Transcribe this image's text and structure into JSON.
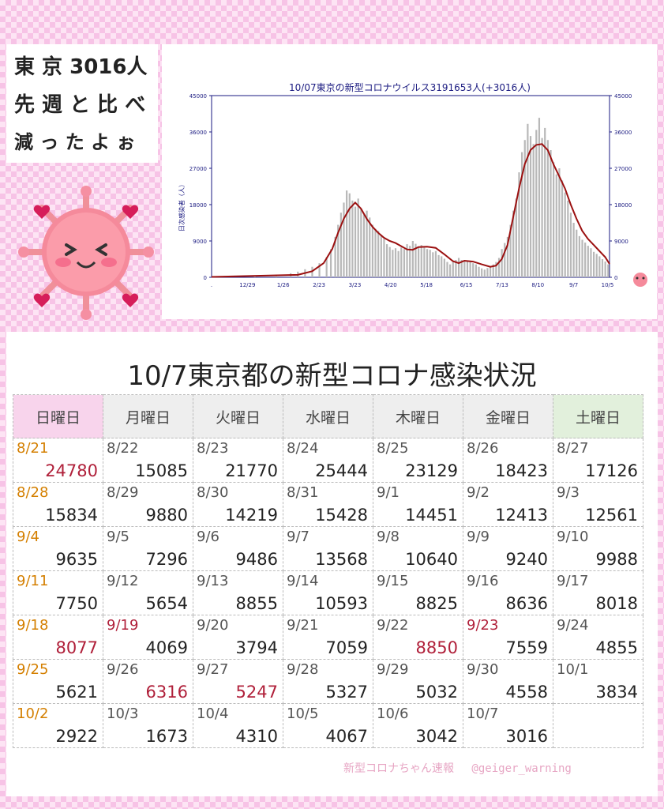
{
  "speech": {
    "line1": "東 京 3016人",
    "line2": "先 週 と 比 べ",
    "line3": "減 っ た よ ぉ"
  },
  "mascot": {
    "face": ">  <",
    "icon": "virus-mascot-icon"
  },
  "chart_data": {
    "type": "bar+line",
    "title": "10/07東京の新型コロナウイルス3191653人(+3016人)",
    "ylabel": "日次感染者（人）",
    "ylim": [
      0,
      45000
    ],
    "yticks": [
      0,
      9000,
      18000,
      27000,
      36000,
      45000
    ],
    "xticks": [
      ".",
      "12/29",
      "1/26",
      "2/23",
      "3/23",
      "4/20",
      "5/18",
      "6/15",
      "7/13",
      "8/10",
      "9/7",
      "10/5"
    ],
    "series": [
      {
        "kind": "bars",
        "color": "#b8b8b8",
        "points": [
          [
            0,
            150
          ],
          [
            30,
            300
          ],
          [
            45,
            600
          ],
          [
            55,
            1000
          ],
          [
            60,
            1400
          ],
          [
            65,
            2000
          ],
          [
            70,
            2600
          ],
          [
            75,
            3500
          ],
          [
            80,
            5000
          ],
          [
            83,
            7000
          ],
          [
            86,
            10000
          ],
          [
            88,
            13000
          ],
          [
            90,
            16000
          ],
          [
            92,
            18500
          ],
          [
            94,
            21500
          ],
          [
            96,
            20800
          ],
          [
            98,
            19000
          ],
          [
            100,
            17500
          ],
          [
            102,
            19500
          ],
          [
            104,
            17000
          ],
          [
            106,
            15500
          ],
          [
            108,
            16500
          ],
          [
            110,
            14800
          ],
          [
            112,
            13000
          ],
          [
            114,
            12000
          ],
          [
            116,
            11500
          ],
          [
            118,
            10500
          ],
          [
            120,
            9500
          ],
          [
            122,
            8200
          ],
          [
            124,
            7500
          ],
          [
            126,
            6800
          ],
          [
            128,
            7200
          ],
          [
            130,
            6500
          ],
          [
            132,
            7400
          ],
          [
            134,
            7000
          ],
          [
            136,
            8200
          ],
          [
            138,
            7800
          ],
          [
            140,
            9000
          ],
          [
            142,
            8300
          ],
          [
            144,
            7300
          ],
          [
            146,
            8000
          ],
          [
            148,
            7500
          ],
          [
            150,
            7000
          ],
          [
            152,
            6800
          ],
          [
            154,
            6200
          ],
          [
            156,
            6500
          ],
          [
            158,
            5500
          ],
          [
            160,
            5200
          ],
          [
            162,
            4600
          ],
          [
            164,
            3800
          ],
          [
            166,
            3200
          ],
          [
            168,
            3800
          ],
          [
            170,
            4300
          ],
          [
            172,
            4800
          ],
          [
            174,
            4300
          ],
          [
            176,
            4100
          ],
          [
            178,
            4000
          ],
          [
            180,
            3800
          ],
          [
            182,
            3500
          ],
          [
            184,
            3200
          ],
          [
            186,
            2600
          ],
          [
            188,
            2200
          ],
          [
            190,
            1900
          ],
          [
            192,
            2300
          ],
          [
            194,
            2600
          ],
          [
            196,
            3200
          ],
          [
            198,
            3800
          ],
          [
            200,
            4800
          ],
          [
            202,
            7000
          ],
          [
            204,
            8500
          ],
          [
            206,
            10000
          ],
          [
            208,
            13000
          ],
          [
            210,
            16500
          ],
          [
            212,
            19500
          ],
          [
            214,
            26000
          ],
          [
            216,
            31000
          ],
          [
            218,
            34000
          ],
          [
            220,
            38000
          ],
          [
            222,
            35000
          ],
          [
            224,
            33000
          ],
          [
            226,
            36500
          ],
          [
            228,
            39500
          ],
          [
            230,
            34500
          ],
          [
            232,
            37000
          ],
          [
            234,
            34000
          ],
          [
            236,
            31500
          ],
          [
            238,
            28500
          ],
          [
            240,
            25500
          ],
          [
            242,
            27000
          ],
          [
            244,
            24000
          ],
          [
            246,
            21000
          ],
          [
            248,
            19000
          ],
          [
            250,
            16000
          ],
          [
            252,
            13500
          ],
          [
            254,
            11800
          ],
          [
            256,
            10200
          ],
          [
            258,
            9300
          ],
          [
            260,
            8600
          ],
          [
            262,
            7800
          ],
          [
            264,
            7200
          ],
          [
            266,
            6300
          ],
          [
            268,
            5800
          ],
          [
            270,
            5200
          ],
          [
            272,
            4500
          ],
          [
            274,
            3900
          ],
          [
            276,
            3200
          ]
        ]
      },
      {
        "kind": "line",
        "color": "#9b1010",
        "points": [
          [
            0,
            100
          ],
          [
            60,
            600
          ],
          [
            70,
            1500
          ],
          [
            78,
            3500
          ],
          [
            84,
            7000
          ],
          [
            88,
            11000
          ],
          [
            92,
            14500
          ],
          [
            96,
            17000
          ],
          [
            100,
            18500
          ],
          [
            104,
            17000
          ],
          [
            108,
            14500
          ],
          [
            112,
            12500
          ],
          [
            116,
            11000
          ],
          [
            120,
            9800
          ],
          [
            124,
            9000
          ],
          [
            128,
            8500
          ],
          [
            132,
            7700
          ],
          [
            136,
            6900
          ],
          [
            140,
            6800
          ],
          [
            144,
            7500
          ],
          [
            150,
            7600
          ],
          [
            156,
            7300
          ],
          [
            162,
            5700
          ],
          [
            168,
            4000
          ],
          [
            172,
            3500
          ],
          [
            176,
            4100
          ],
          [
            182,
            3900
          ],
          [
            188,
            3200
          ],
          [
            194,
            2600
          ],
          [
            198,
            2900
          ],
          [
            202,
            4500
          ],
          [
            206,
            8000
          ],
          [
            210,
            15000
          ],
          [
            214,
            22000
          ],
          [
            218,
            28000
          ],
          [
            222,
            31500
          ],
          [
            226,
            32800
          ],
          [
            230,
            33000
          ],
          [
            234,
            31500
          ],
          [
            238,
            28000
          ],
          [
            242,
            25000
          ],
          [
            246,
            22000
          ],
          [
            250,
            18000
          ],
          [
            254,
            14500
          ],
          [
            258,
            11500
          ],
          [
            262,
            9500
          ],
          [
            266,
            8000
          ],
          [
            270,
            6500
          ],
          [
            274,
            5000
          ],
          [
            277,
            3300
          ]
        ]
      }
    ]
  },
  "table": {
    "title": "10/7東京都の新型コロナ感染状況",
    "headers": [
      "日曜日",
      "月曜日",
      "火曜日",
      "水曜日",
      "木曜日",
      "金曜日",
      "土曜日"
    ],
    "rows": [
      [
        {
          "date": "8/21",
          "count": "24780"
        },
        {
          "date": "8/22",
          "count": "15085"
        },
        {
          "date": "8/23",
          "count": "21770"
        },
        {
          "date": "8/24",
          "count": "25444"
        },
        {
          "date": "8/25",
          "count": "23129"
        },
        {
          "date": "8/26",
          "count": "18423"
        },
        {
          "date": "8/27",
          "count": "17126"
        }
      ],
      [
        {
          "date": "8/28",
          "count": "15834"
        },
        {
          "date": "8/29",
          "count": "9880"
        },
        {
          "date": "8/30",
          "count": "14219"
        },
        {
          "date": "8/31",
          "count": "15428"
        },
        {
          "date": "9/1",
          "count": "14451"
        },
        {
          "date": "9/2",
          "count": "12413"
        },
        {
          "date": "9/3",
          "count": "12561"
        }
      ],
      [
        {
          "date": "9/4",
          "count": "9635"
        },
        {
          "date": "9/5",
          "count": "7296"
        },
        {
          "date": "9/6",
          "count": "9486"
        },
        {
          "date": "9/7",
          "count": "13568"
        },
        {
          "date": "9/8",
          "count": "10640"
        },
        {
          "date": "9/9",
          "count": "9240"
        },
        {
          "date": "9/10",
          "count": "9988"
        }
      ],
      [
        {
          "date": "9/11",
          "count": "7750"
        },
        {
          "date": "9/12",
          "count": "5654"
        },
        {
          "date": "9/13",
          "count": "8855"
        },
        {
          "date": "9/14",
          "count": "10593"
        },
        {
          "date": "9/15",
          "count": "8825"
        },
        {
          "date": "9/16",
          "count": "8636"
        },
        {
          "date": "9/17",
          "count": "8018"
        }
      ],
      [
        {
          "date": "9/18",
          "count": "8077"
        },
        {
          "date": "9/19",
          "count": "4069"
        },
        {
          "date": "9/20",
          "count": "3794"
        },
        {
          "date": "9/21",
          "count": "7059"
        },
        {
          "date": "9/22",
          "count": "8850"
        },
        {
          "date": "9/23",
          "count": "7559"
        },
        {
          "date": "9/24",
          "count": "4855"
        }
      ],
      [
        {
          "date": "9/25",
          "count": "5621"
        },
        {
          "date": "9/26",
          "count": "6316"
        },
        {
          "date": "9/27",
          "count": "5247"
        },
        {
          "date": "9/28",
          "count": "5327"
        },
        {
          "date": "9/29",
          "count": "5032"
        },
        {
          "date": "9/30",
          "count": "4558"
        },
        {
          "date": "10/1",
          "count": "3834"
        }
      ],
      [
        {
          "date": "10/2",
          "count": "2922"
        },
        {
          "date": "10/3",
          "count": "1673"
        },
        {
          "date": "10/4",
          "count": "4310"
        },
        {
          "date": "10/5",
          "count": "4067"
        },
        {
          "date": "10/6",
          "count": "3042"
        },
        {
          "date": "10/7",
          "count": "3016"
        },
        {
          "date": "",
          "count": ""
        }
      ]
    ]
  },
  "footer": "新型コロナちゃん速報 　@geiger_warning"
}
